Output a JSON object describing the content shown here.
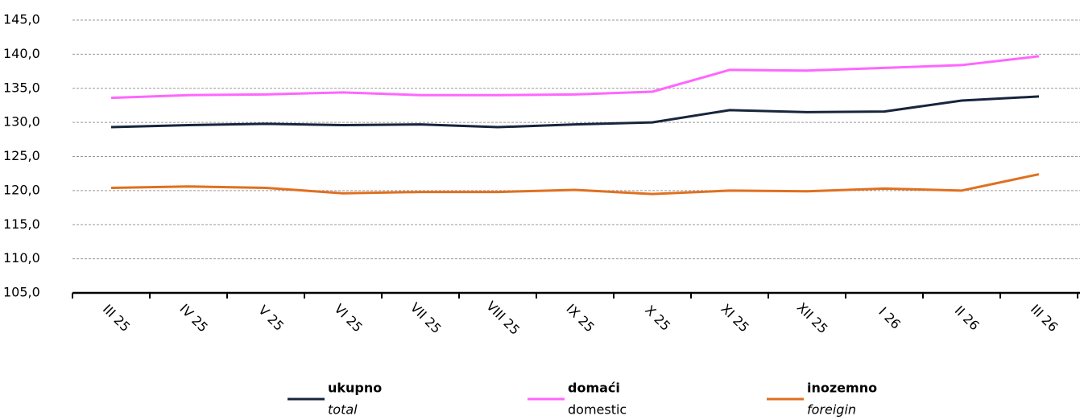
{
  "chart_data": {
    "type": "line",
    "categories": [
      "III 25",
      "IV 25",
      "V 25",
      "VI 25",
      "VII 25",
      "VIII 25",
      "IX 25",
      "X 25",
      "XI 25",
      "XII 25",
      "I 26",
      "II 26",
      "III 26"
    ],
    "series": [
      {
        "name": "ukupno",
        "name_en": "total",
        "color": "#17253d",
        "values": [
          129.3,
          129.6,
          129.8,
          129.6,
          129.7,
          129.3,
          129.7,
          130.0,
          131.8,
          131.5,
          131.6,
          133.2,
          133.8
        ]
      },
      {
        "name": "domaći",
        "name_en": "domestic",
        "color": "#ff66ff",
        "values": [
          133.6,
          134.0,
          134.1,
          134.4,
          134.0,
          134.0,
          134.1,
          134.5,
          137.7,
          137.6,
          138.0,
          138.4,
          139.7
        ]
      },
      {
        "name": "inozemno",
        "name_en": "foreigin",
        "color": "#e07020",
        "values": [
          120.4,
          120.6,
          120.4,
          119.6,
          119.8,
          119.8,
          120.1,
          119.5,
          120.0,
          119.9,
          120.3,
          120.0,
          122.4
        ]
      }
    ],
    "ylim": [
      105,
      145
    ],
    "yticks": [
      {
        "value": 105,
        "label": "105,0"
      },
      {
        "value": 110,
        "label": "110,0"
      },
      {
        "value": 115,
        "label": "115,0"
      },
      {
        "value": 120,
        "label": "120,0"
      },
      {
        "value": 125,
        "label": "125,0"
      },
      {
        "value": 130,
        "label": "130,0"
      },
      {
        "value": 135,
        "label": "135,0"
      },
      {
        "value": 140,
        "label": "140,0"
      },
      {
        "value": 145,
        "label": "145,0"
      }
    ],
    "grid": true
  }
}
